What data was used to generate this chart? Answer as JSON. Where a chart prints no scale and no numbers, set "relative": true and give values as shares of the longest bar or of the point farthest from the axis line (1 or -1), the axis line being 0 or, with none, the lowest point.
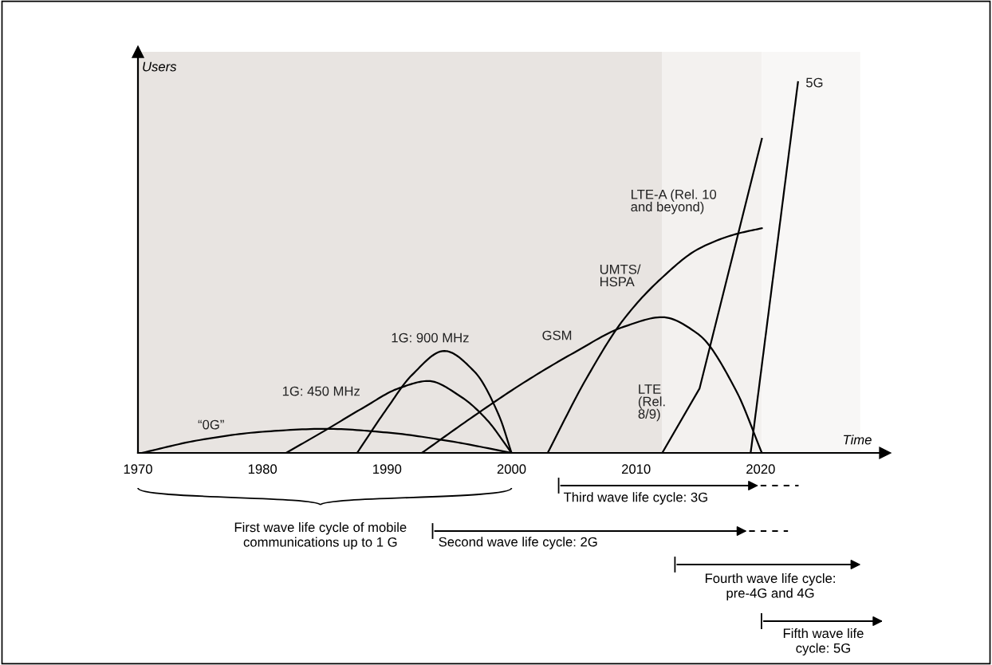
{
  "chart_data": {
    "type": "line",
    "relative": true,
    "xlabel": "Time",
    "ylabel": "Users",
    "xlim": [
      1970,
      2030
    ],
    "xticks": [
      1970,
      1980,
      1990,
      2000,
      2010,
      2020
    ],
    "series": [
      {
        "name": "“0G”",
        "color": "#000000",
        "x": [
          1970.3,
          1975,
          1980,
          1985.1,
          1990,
          1995,
          2000
        ],
        "values": [
          0,
          0.035,
          0.057,
          0.065,
          0.055,
          0.032,
          0
        ]
      },
      {
        "name": "1G: 450 MHz",
        "color": "#000000",
        "x": [
          1981.9,
          1985,
          1988,
          1991,
          1993.3,
          1996,
          1998,
          2000
        ],
        "values": [
          0,
          0.06,
          0.12,
          0.175,
          0.194,
          0.15,
          0.09,
          0
        ]
      },
      {
        "name": "1G: 900 MHz",
        "color": "#000000",
        "x": [
          1987.6,
          1990,
          1992,
          1994.6,
          1997,
          1999,
          2000
        ],
        "values": [
          0,
          0.12,
          0.21,
          0.275,
          0.22,
          0.1,
          0
        ]
      },
      {
        "name": "GSM",
        "color": "#000000",
        "x": [
          1992.8,
          1997,
          2001,
          2005,
          2009,
          2012.1,
          2015,
          2018,
          2020.1
        ],
        "values": [
          0,
          0.1,
          0.19,
          0.27,
          0.34,
          0.366,
          0.32,
          0.17,
          0
        ]
      },
      {
        "name": "UMTS/\nHSPA",
        "color": "#000000",
        "x": [
          2002.9,
          2006,
          2009,
          2012,
          2015,
          2018,
          2020.1
        ],
        "values": [
          0,
          0.2,
          0.36,
          0.47,
          0.55,
          0.59,
          0.606
        ]
      },
      {
        "name": "LTE\n(Rel.\n8/9)",
        "color": "#000000",
        "x": [
          2012.1,
          2015.1,
          2020.1
        ],
        "values": [
          0,
          0.174,
          0.847
        ]
      },
      {
        "name": "5G",
        "color": "#000000",
        "x": [
          2019.2,
          2023.0
        ],
        "values": [
          0,
          1
        ]
      }
    ],
    "bands": [
      {
        "axis": "x",
        "from": 1970,
        "to": 2012.1,
        "label": null,
        "color": "#e8e4e1"
      },
      {
        "axis": "x",
        "from": 2012.1,
        "to": 2020.1,
        "label": null,
        "color": "#f3f1ef"
      },
      {
        "axis": "x",
        "from": 2020.1,
        "to": 2028,
        "label": null,
        "color": "#f8f7f6"
      }
    ],
    "annotations": [
      "First wave life cycle of mobile\ncommunications up to 1 G",
      "Second wave life cycle: 2G",
      "Third wave life cycle: 3G",
      "Fourth wave life cycle:\npre-4G and 4G",
      "Fifth wave life\ncycle: 5G",
      "LTE-A (Rel. 10\nand beyond)"
    ],
    "legend": false,
    "grid": false
  }
}
